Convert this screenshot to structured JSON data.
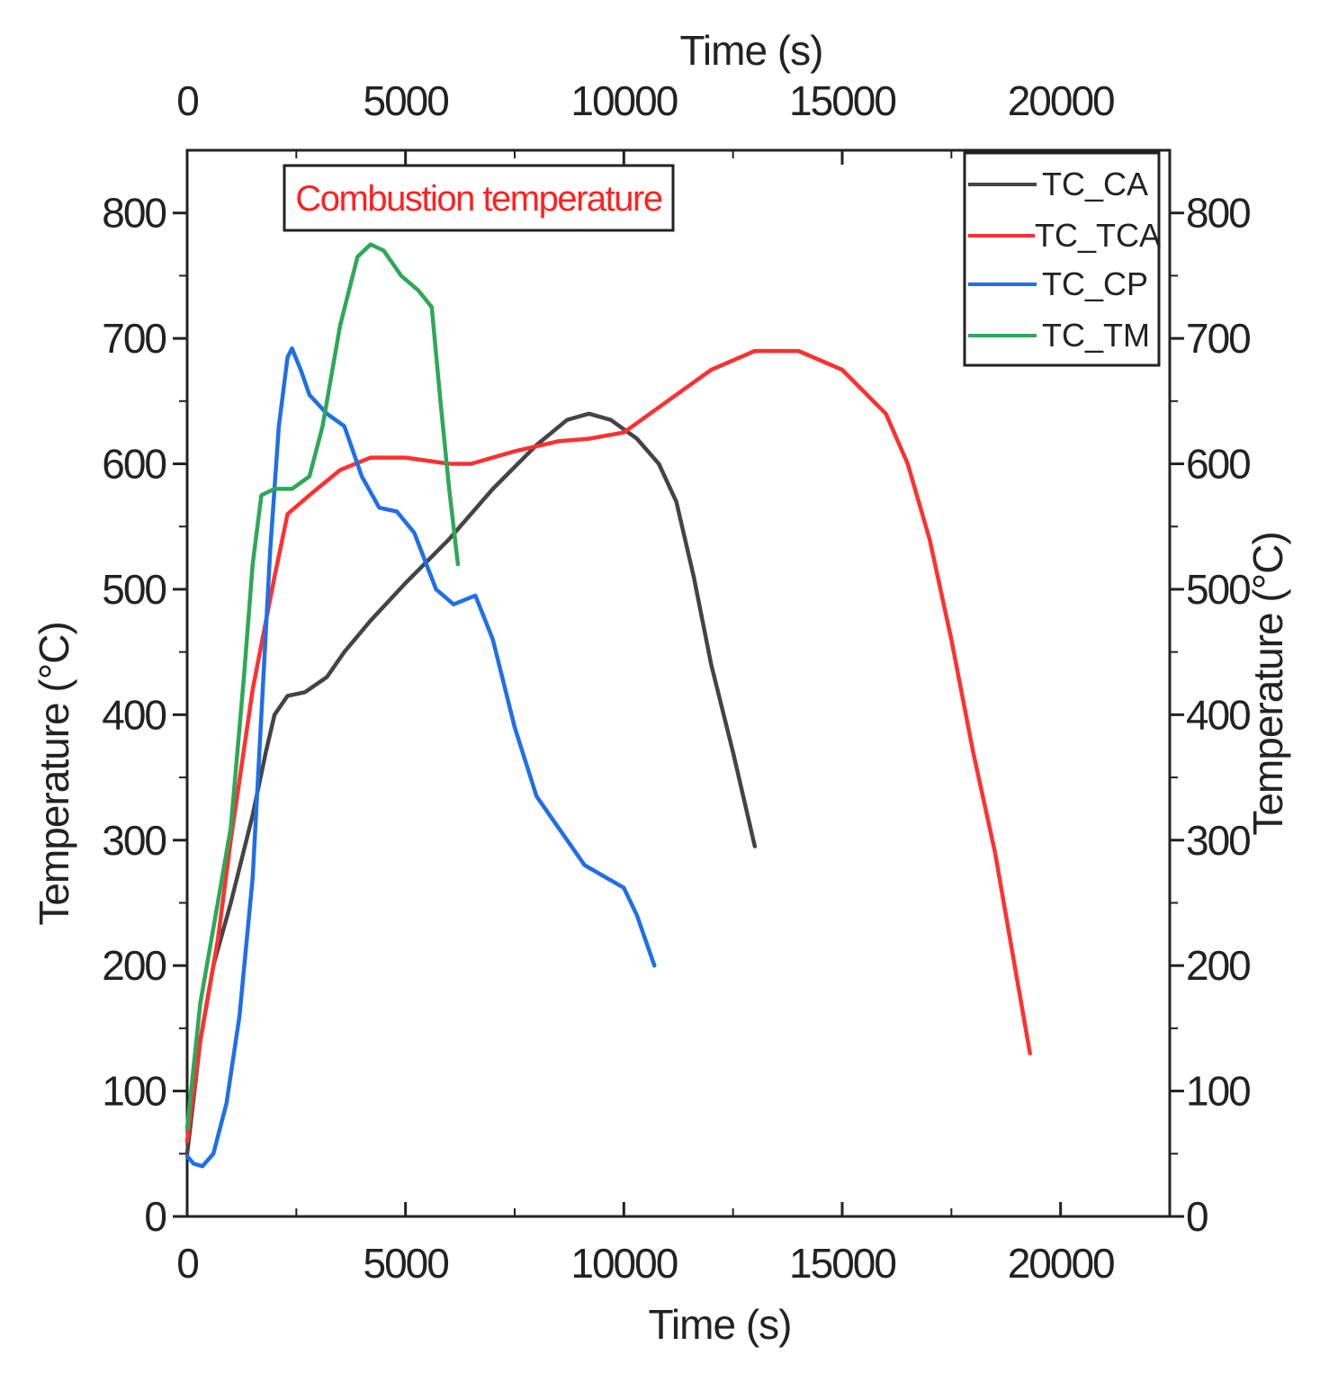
{
  "chart_data": {
    "type": "line",
    "xlabel_bottom": "Time (s)",
    "xlabel_top": "Time (s)",
    "ylabel_left": "Temperature (°C)",
    "ylabel_right": "Temperature (°C)",
    "annotation": "Combustion temperature",
    "xlim": [
      0,
      22500
    ],
    "ylim": [
      0,
      850
    ],
    "x_ticks": [
      0,
      5000,
      10000,
      15000,
      20000
    ],
    "y_ticks": [
      0,
      100,
      200,
      300,
      400,
      500,
      600,
      700,
      800
    ],
    "grid": false,
    "legend_position": "top-right",
    "series": [
      {
        "name": "TC_CA",
        "color": "#444444",
        "points": [
          [
            0,
            50
          ],
          [
            300,
            140
          ],
          [
            600,
            200
          ],
          [
            1000,
            250
          ],
          [
            1500,
            320
          ],
          [
            1800,
            370
          ],
          [
            2000,
            400
          ],
          [
            2300,
            415
          ],
          [
            2700,
            418
          ],
          [
            3200,
            430
          ],
          [
            3600,
            450
          ],
          [
            4200,
            475
          ],
          [
            5000,
            505
          ],
          [
            6000,
            540
          ],
          [
            7000,
            580
          ],
          [
            8000,
            615
          ],
          [
            8700,
            635
          ],
          [
            9200,
            640
          ],
          [
            9700,
            635
          ],
          [
            10300,
            620
          ],
          [
            10800,
            600
          ],
          [
            11200,
            570
          ],
          [
            11600,
            510
          ],
          [
            12000,
            440
          ],
          [
            12500,
            370
          ],
          [
            13000,
            295
          ]
        ]
      },
      {
        "name": "TC_TCA",
        "color": "#ff3030",
        "points": [
          [
            0,
            60
          ],
          [
            300,
            140
          ],
          [
            700,
            220
          ],
          [
            1000,
            300
          ],
          [
            1500,
            420
          ],
          [
            2000,
            510
          ],
          [
            2300,
            560
          ],
          [
            2800,
            575
          ],
          [
            3500,
            595
          ],
          [
            4200,
            605
          ],
          [
            5000,
            605
          ],
          [
            6000,
            600
          ],
          [
            6500,
            600
          ],
          [
            7500,
            610
          ],
          [
            8500,
            618
          ],
          [
            9200,
            620
          ],
          [
            10000,
            625
          ],
          [
            11000,
            650
          ],
          [
            12000,
            675
          ],
          [
            13000,
            690
          ],
          [
            14000,
            690
          ],
          [
            15000,
            675
          ],
          [
            16000,
            640
          ],
          [
            16500,
            600
          ],
          [
            17000,
            540
          ],
          [
            17500,
            460
          ],
          [
            18000,
            370
          ],
          [
            18500,
            290
          ],
          [
            19000,
            190
          ],
          [
            19300,
            130
          ]
        ]
      },
      {
        "name": "TC_CP",
        "color": "#1e6fe8",
        "points": [
          [
            0,
            48
          ],
          [
            150,
            42
          ],
          [
            350,
            40
          ],
          [
            600,
            50
          ],
          [
            900,
            90
          ],
          [
            1200,
            160
          ],
          [
            1500,
            270
          ],
          [
            1700,
            400
          ],
          [
            1900,
            530
          ],
          [
            2100,
            630
          ],
          [
            2300,
            685
          ],
          [
            2400,
            692
          ],
          [
            2600,
            675
          ],
          [
            2800,
            655
          ],
          [
            3200,
            640
          ],
          [
            3600,
            630
          ],
          [
            4000,
            590
          ],
          [
            4400,
            565
          ],
          [
            4800,
            562
          ],
          [
            5200,
            545
          ],
          [
            5700,
            500
          ],
          [
            6100,
            488
          ],
          [
            6600,
            495
          ],
          [
            7000,
            460
          ],
          [
            7500,
            390
          ],
          [
            8000,
            335
          ],
          [
            8600,
            305
          ],
          [
            9100,
            280
          ],
          [
            9600,
            270
          ],
          [
            10000,
            262
          ],
          [
            10300,
            240
          ],
          [
            10700,
            200
          ]
        ]
      },
      {
        "name": "TC_TM",
        "color": "#2ca858",
        "points": [
          [
            0,
            70
          ],
          [
            300,
            170
          ],
          [
            700,
            250
          ],
          [
            1000,
            310
          ],
          [
            1300,
            430
          ],
          [
            1500,
            520
          ],
          [
            1700,
            575
          ],
          [
            2000,
            580
          ],
          [
            2400,
            580
          ],
          [
            2800,
            590
          ],
          [
            3100,
            630
          ],
          [
            3500,
            710
          ],
          [
            3900,
            765
          ],
          [
            4200,
            775
          ],
          [
            4500,
            770
          ],
          [
            4900,
            750
          ],
          [
            5300,
            738
          ],
          [
            5600,
            725
          ],
          [
            5800,
            650
          ],
          [
            6000,
            580
          ],
          [
            6200,
            520
          ]
        ]
      }
    ]
  }
}
